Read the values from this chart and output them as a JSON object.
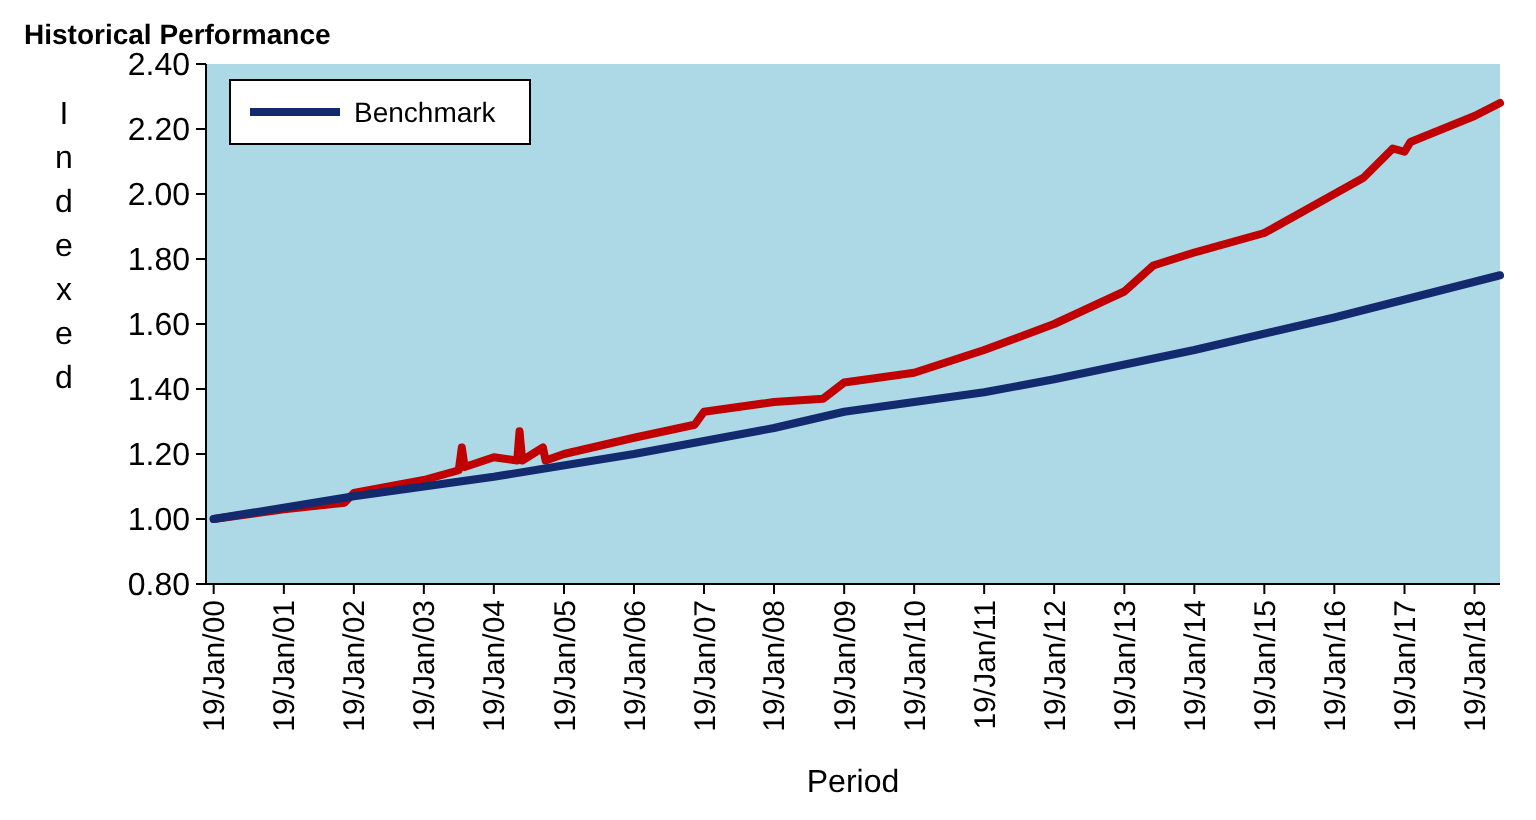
{
  "chart_data": {
    "type": "line",
    "title": "Historical Performance",
    "xlabel": "Period",
    "ylabel": "Indexed",
    "xlim": [
      "1999-12-10",
      "2018-06-01"
    ],
    "ylim": [
      0.8,
      2.4
    ],
    "yticks": [
      {
        "value": 0.8,
        "label": "0.80"
      },
      {
        "value": 1,
        "label": "1.00"
      },
      {
        "value": 1.2,
        "label": "1.20"
      },
      {
        "value": 1.4,
        "label": "1.40"
      },
      {
        "value": 1.6,
        "label": "1.60"
      },
      {
        "value": 1.8,
        "label": "1.80"
      },
      {
        "value": 2,
        "label": "2.00"
      },
      {
        "value": 2.2,
        "label": "2.20"
      },
      {
        "value": 2.4,
        "label": "2.40"
      }
    ],
    "xticks": [
      {
        "value": "2000-01-19",
        "label": "19/Jan/00"
      },
      {
        "value": "2001-01-19",
        "label": "19/Jan/01"
      },
      {
        "value": "2002-01-19",
        "label": "19/Jan/02"
      },
      {
        "value": "2003-01-19",
        "label": "19/Jan/03"
      },
      {
        "value": "2004-01-19",
        "label": "19/Jan/04"
      },
      {
        "value": "2005-01-19",
        "label": "19/Jan/05"
      },
      {
        "value": "2006-01-19",
        "label": "19/Jan/06"
      },
      {
        "value": "2007-01-19",
        "label": "19/Jan/07"
      },
      {
        "value": "2008-01-19",
        "label": "19/Jan/08"
      },
      {
        "value": "2009-01-19",
        "label": "19/Jan/09"
      },
      {
        "value": "2010-01-19",
        "label": "19/Jan/10"
      },
      {
        "value": "2011-01-19",
        "label": "19/Jan/11"
      },
      {
        "value": "2012-01-19",
        "label": "19/Jan/12"
      },
      {
        "value": "2013-01-19",
        "label": "19/Jan/13"
      },
      {
        "value": "2014-01-19",
        "label": "19/Jan/14"
      },
      {
        "value": "2015-01-19",
        "label": "19/Jan/15"
      },
      {
        "value": "2016-01-19",
        "label": "19/Jan/16"
      },
      {
        "value": "2017-01-19",
        "label": "19/Jan/17"
      },
      {
        "value": "2018-01-19",
        "label": "19/Jan/18"
      }
    ],
    "grid": false,
    "legend": "top left",
    "line_style": "solid",
    "series": [
      {
        "color": "#c00000",
        "x": [
          "2000-01-19",
          "2001-01-19",
          "2001-12-01",
          "2002-01-19",
          "2003-01-19",
          "2003-07-20",
          "2003-08-05",
          "2003-08-20",
          "2004-01-19",
          "2004-05-20",
          "2004-06-01",
          "2004-06-15",
          "2004-10-01",
          "2004-10-15",
          "2005-01-19",
          "2006-01-19",
          "2006-12-01",
          "2007-01-19",
          "2008-01-19",
          "2008-10-01",
          "2009-01-19",
          "2010-01-19",
          "2011-01-19",
          "2012-01-19",
          "2013-01-19",
          "2013-06-19",
          "2014-01-19",
          "2015-01-19",
          "2016-01-19",
          "2016-06-19",
          "2016-11-19",
          "2017-01-19",
          "2017-02-19",
          "2018-01-19",
          "2018-06-01"
        ],
        "values": [
          1.0,
          1.03,
          1.05,
          1.08,
          1.12,
          1.15,
          1.22,
          1.16,
          1.19,
          1.18,
          1.27,
          1.18,
          1.22,
          1.18,
          1.2,
          1.25,
          1.29,
          1.33,
          1.36,
          1.37,
          1.42,
          1.45,
          1.52,
          1.6,
          1.7,
          1.78,
          1.82,
          1.88,
          2.0,
          2.05,
          2.14,
          2.13,
          2.16,
          2.24,
          2.28
        ]
      },
      {
        "name": "Benchmark",
        "color": "#142a6e",
        "x": [
          "2000-01-19",
          "2002-01-19",
          "2004-01-19",
          "2006-01-19",
          "2008-01-19",
          "2009-01-19",
          "2011-01-19",
          "2012-01-19",
          "2014-01-19",
          "2016-01-19",
          "2018-01-19",
          "2018-06-01"
        ],
        "values": [
          1.0,
          1.07,
          1.13,
          1.2,
          1.28,
          1.33,
          1.39,
          1.43,
          1.52,
          1.62,
          1.73,
          1.75
        ]
      }
    ]
  }
}
